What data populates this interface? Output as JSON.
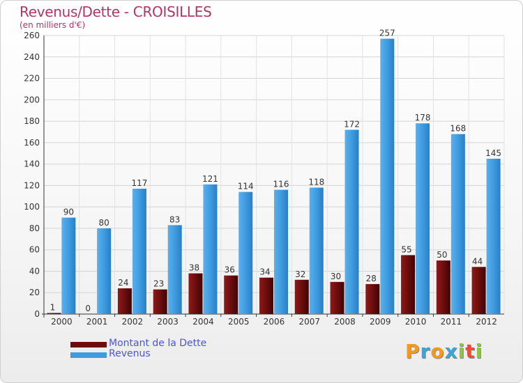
{
  "header": {
    "title": "Revenus/Dette - CROISILLES",
    "subtitle": "(en milliers d'€)"
  },
  "brand": {
    "letters": [
      "P",
      "r",
      "o",
      "x",
      "i",
      "t",
      "i"
    ],
    "colors": [
      "#f29a1f",
      "#3aa6d8",
      "#f29a1f",
      "#3aa6d8",
      "#8cc63f",
      "#e84e3b",
      "#8cc63f"
    ]
  },
  "legend": {
    "items": [
      {
        "label": "Montant de la Dette",
        "color": "#6b0d0d"
      },
      {
        "label": "Revenus",
        "color": "#3f9be0"
      }
    ]
  },
  "chart_data": {
    "type": "bar",
    "title": "Revenus/Dette - CROISILLES",
    "subtitle": "(en milliers d'€)",
    "xlabel": "",
    "ylabel": "",
    "ylim": [
      0,
      260
    ],
    "yticks": [
      0,
      20,
      40,
      60,
      80,
      100,
      120,
      140,
      160,
      180,
      200,
      220,
      240,
      260
    ],
    "grid": true,
    "legend_position": "bottom-left",
    "categories": [
      "2000",
      "2001",
      "2002",
      "2003",
      "2004",
      "2005",
      "2006",
      "2007",
      "2008",
      "2009",
      "2010",
      "2011",
      "2012"
    ],
    "series": [
      {
        "name": "Montant de la Dette",
        "color": "#6b0d0d",
        "values": [
          1,
          0,
          24,
          23,
          38,
          36,
          34,
          32,
          30,
          28,
          55,
          50,
          44
        ]
      },
      {
        "name": "Revenus",
        "color": "#3f9be0",
        "values": [
          90,
          80,
          117,
          83,
          121,
          114,
          116,
          118,
          172,
          257,
          178,
          168,
          145
        ]
      }
    ]
  }
}
